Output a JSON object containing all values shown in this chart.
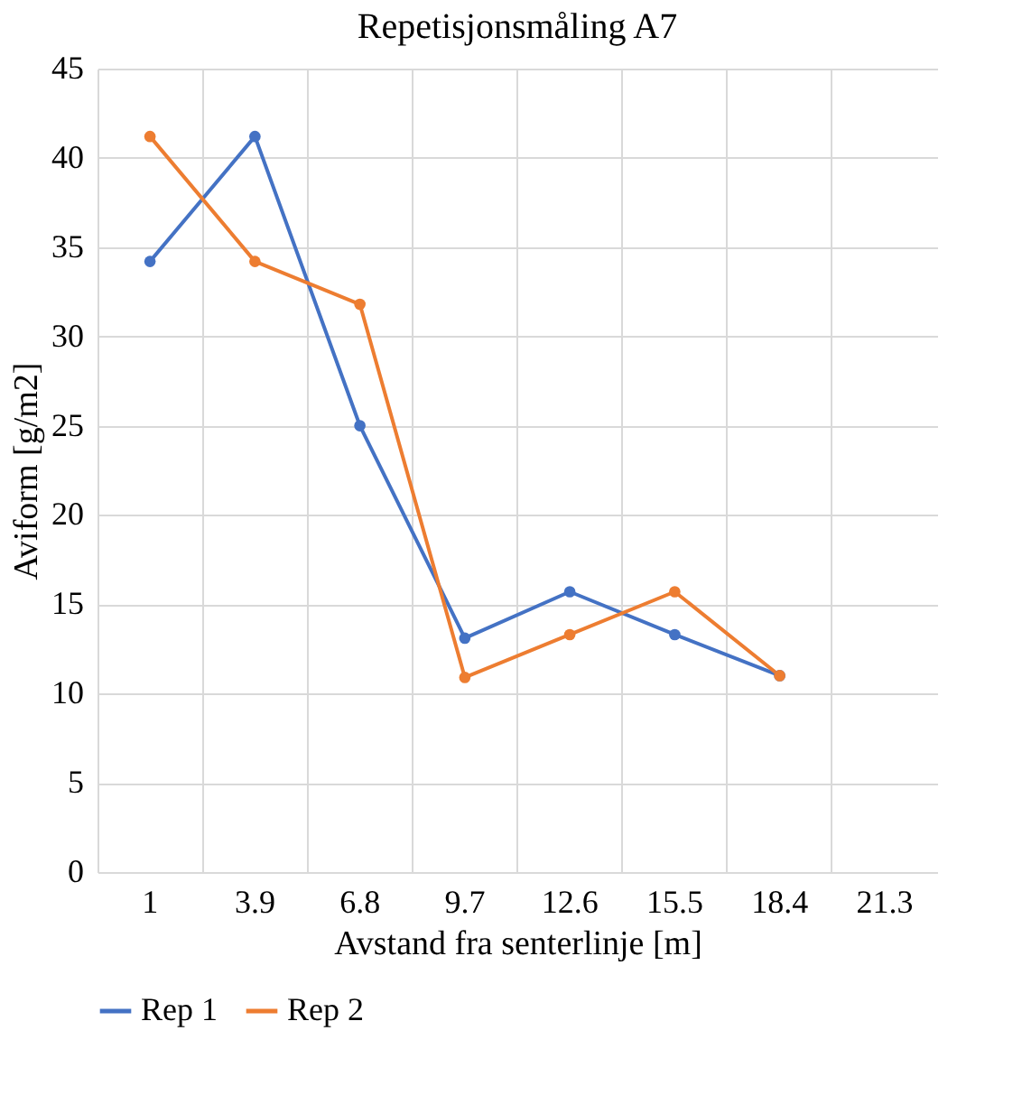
{
  "chart_data": {
    "type": "line",
    "title": "Repetisjonsmåling A7",
    "xlabel": "Avstand fra senterlinje [m]",
    "ylabel": "Aviform [g/m2]",
    "categories": [
      "1",
      "3.9",
      "6.8",
      "9.7",
      "12.6",
      "15.5",
      "18.4",
      "21.3"
    ],
    "series": [
      {
        "name": "Rep 1",
        "color": "#4472c4",
        "values": [
          34.2,
          41.2,
          25.0,
          13.1,
          15.7,
          13.3,
          11.0,
          null
        ]
      },
      {
        "name": "Rep 2",
        "color": "#ed7d31",
        "values": [
          41.2,
          34.2,
          31.8,
          10.9,
          13.3,
          15.7,
          11.0,
          null
        ]
      }
    ],
    "ylim": [
      0,
      45
    ],
    "yticks": [
      0,
      5,
      10,
      15,
      20,
      25,
      30,
      35,
      40,
      45
    ],
    "grid": true,
    "legend": "bottom",
    "marker": "circle",
    "line_style": "solid"
  }
}
